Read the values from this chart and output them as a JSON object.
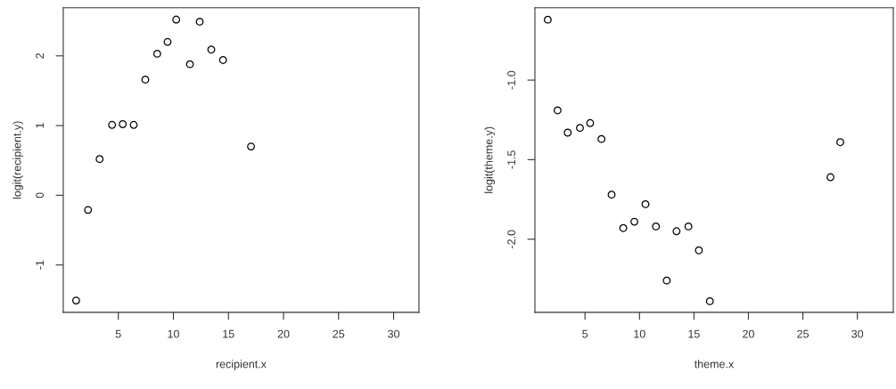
{
  "chart_data": [
    {
      "type": "scatter",
      "xlabel": "recipient.x",
      "ylabel": "logit(recipient.y)",
      "marker": "circle",
      "x": [
        1.17,
        2.25,
        3.3,
        4.43,
        5.4,
        6.4,
        7.45,
        8.53,
        9.47,
        10.26,
        11.5,
        12.39,
        13.44,
        14.51,
        17.05
      ],
      "series": [
        {
          "color": "#000000",
          "values": [
            -1.51,
            -0.21,
            0.52,
            1.01,
            1.02,
            1.01,
            1.66,
            2.03,
            2.2,
            2.52,
            1.88,
            2.49,
            2.09,
            1.94,
            0.7
          ]
        }
      ],
      "xlim": [
        0.0,
        32.3
      ],
      "ylim": [
        -1.68,
        2.69
      ],
      "xticks": [
        5,
        10,
        15,
        20,
        25,
        30
      ],
      "yticks": [
        -1,
        0,
        1,
        2
      ],
      "grid": false,
      "legend": false
    },
    {
      "type": "scatter",
      "xlabel": "theme.x",
      "ylabel": "logit(theme.y)",
      "marker": "circle",
      "x": [
        1.58,
        2.48,
        3.41,
        4.53,
        5.47,
        6.51,
        7.44,
        8.51,
        9.53,
        10.55,
        11.51,
        12.5,
        13.4,
        14.49,
        15.45,
        16.46,
        27.53,
        28.43
      ],
      "series": [
        {
          "color": "#000000",
          "values": [
            -0.62,
            -1.19,
            -1.33,
            -1.3,
            -1.27,
            -1.37,
            -1.72,
            -1.93,
            -1.89,
            -1.78,
            -1.92,
            -2.26,
            -1.95,
            -1.92,
            -2.07,
            -2.39,
            -1.61,
            -1.39
          ]
        }
      ],
      "xlim": [
        0.4,
        33.3
      ],
      "ylim": [
        -2.46,
        -0.545
      ],
      "xticks": [
        5,
        10,
        15,
        20,
        25,
        30
      ],
      "yticks": [
        {
          "value": -2.0,
          "label": "-2.0"
        },
        {
          "value": -1.5,
          "label": "-1.5"
        },
        {
          "value": -1.0,
          "label": "-1.0"
        }
      ],
      "grid": false,
      "legend": false
    }
  ]
}
